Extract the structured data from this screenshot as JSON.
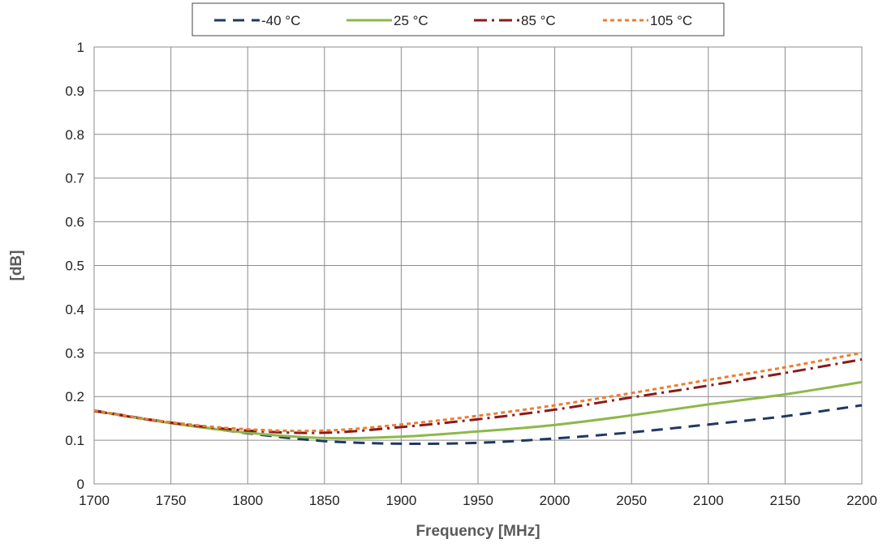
{
  "chart_data": {
    "type": "line",
    "xlabel": "Frequency [MHz]",
    "ylabel": "[dB]",
    "xlim": [
      1700,
      2200
    ],
    "ylim": [
      0,
      1
    ],
    "x_ticks": [
      "1700",
      "1750",
      "1800",
      "1850",
      "1900",
      "1950",
      "2000",
      "2050",
      "2100",
      "2150",
      "2200"
    ],
    "y_ticks": [
      "0",
      "0.1",
      "0.2",
      "0.3",
      "0.4",
      "0.5",
      "0.6",
      "0.7",
      "0.8",
      "0.9",
      "1"
    ],
    "grid": true,
    "legend_position": "top-center",
    "x": [
      1700,
      1750,
      1800,
      1850,
      1900,
      1950,
      2000,
      2050,
      2100,
      2150,
      2200
    ],
    "series": [
      {
        "name": "-40 °C",
        "color": "#1f3864",
        "style": "dashed",
        "values": [
          0.168,
          0.14,
          0.116,
          0.098,
          0.092,
          0.094,
          0.104,
          0.118,
          0.136,
          0.155,
          0.18
        ]
      },
      {
        "name": "25 °C",
        "color": "#8db84a",
        "style": "solid",
        "values": [
          0.167,
          0.139,
          0.117,
          0.105,
          0.108,
          0.12,
          0.135,
          0.157,
          0.182,
          0.205,
          0.233
        ]
      },
      {
        "name": "85 °C",
        "color": "#8b1a1a",
        "style": "dash-dot",
        "values": [
          0.167,
          0.14,
          0.122,
          0.117,
          0.13,
          0.148,
          0.17,
          0.198,
          0.225,
          0.254,
          0.285
        ]
      },
      {
        "name": "105 °C",
        "color": "#ed7d31",
        "style": "dotted",
        "values": [
          0.168,
          0.141,
          0.125,
          0.122,
          0.136,
          0.156,
          0.18,
          0.208,
          0.238,
          0.267,
          0.3
        ]
      }
    ]
  }
}
